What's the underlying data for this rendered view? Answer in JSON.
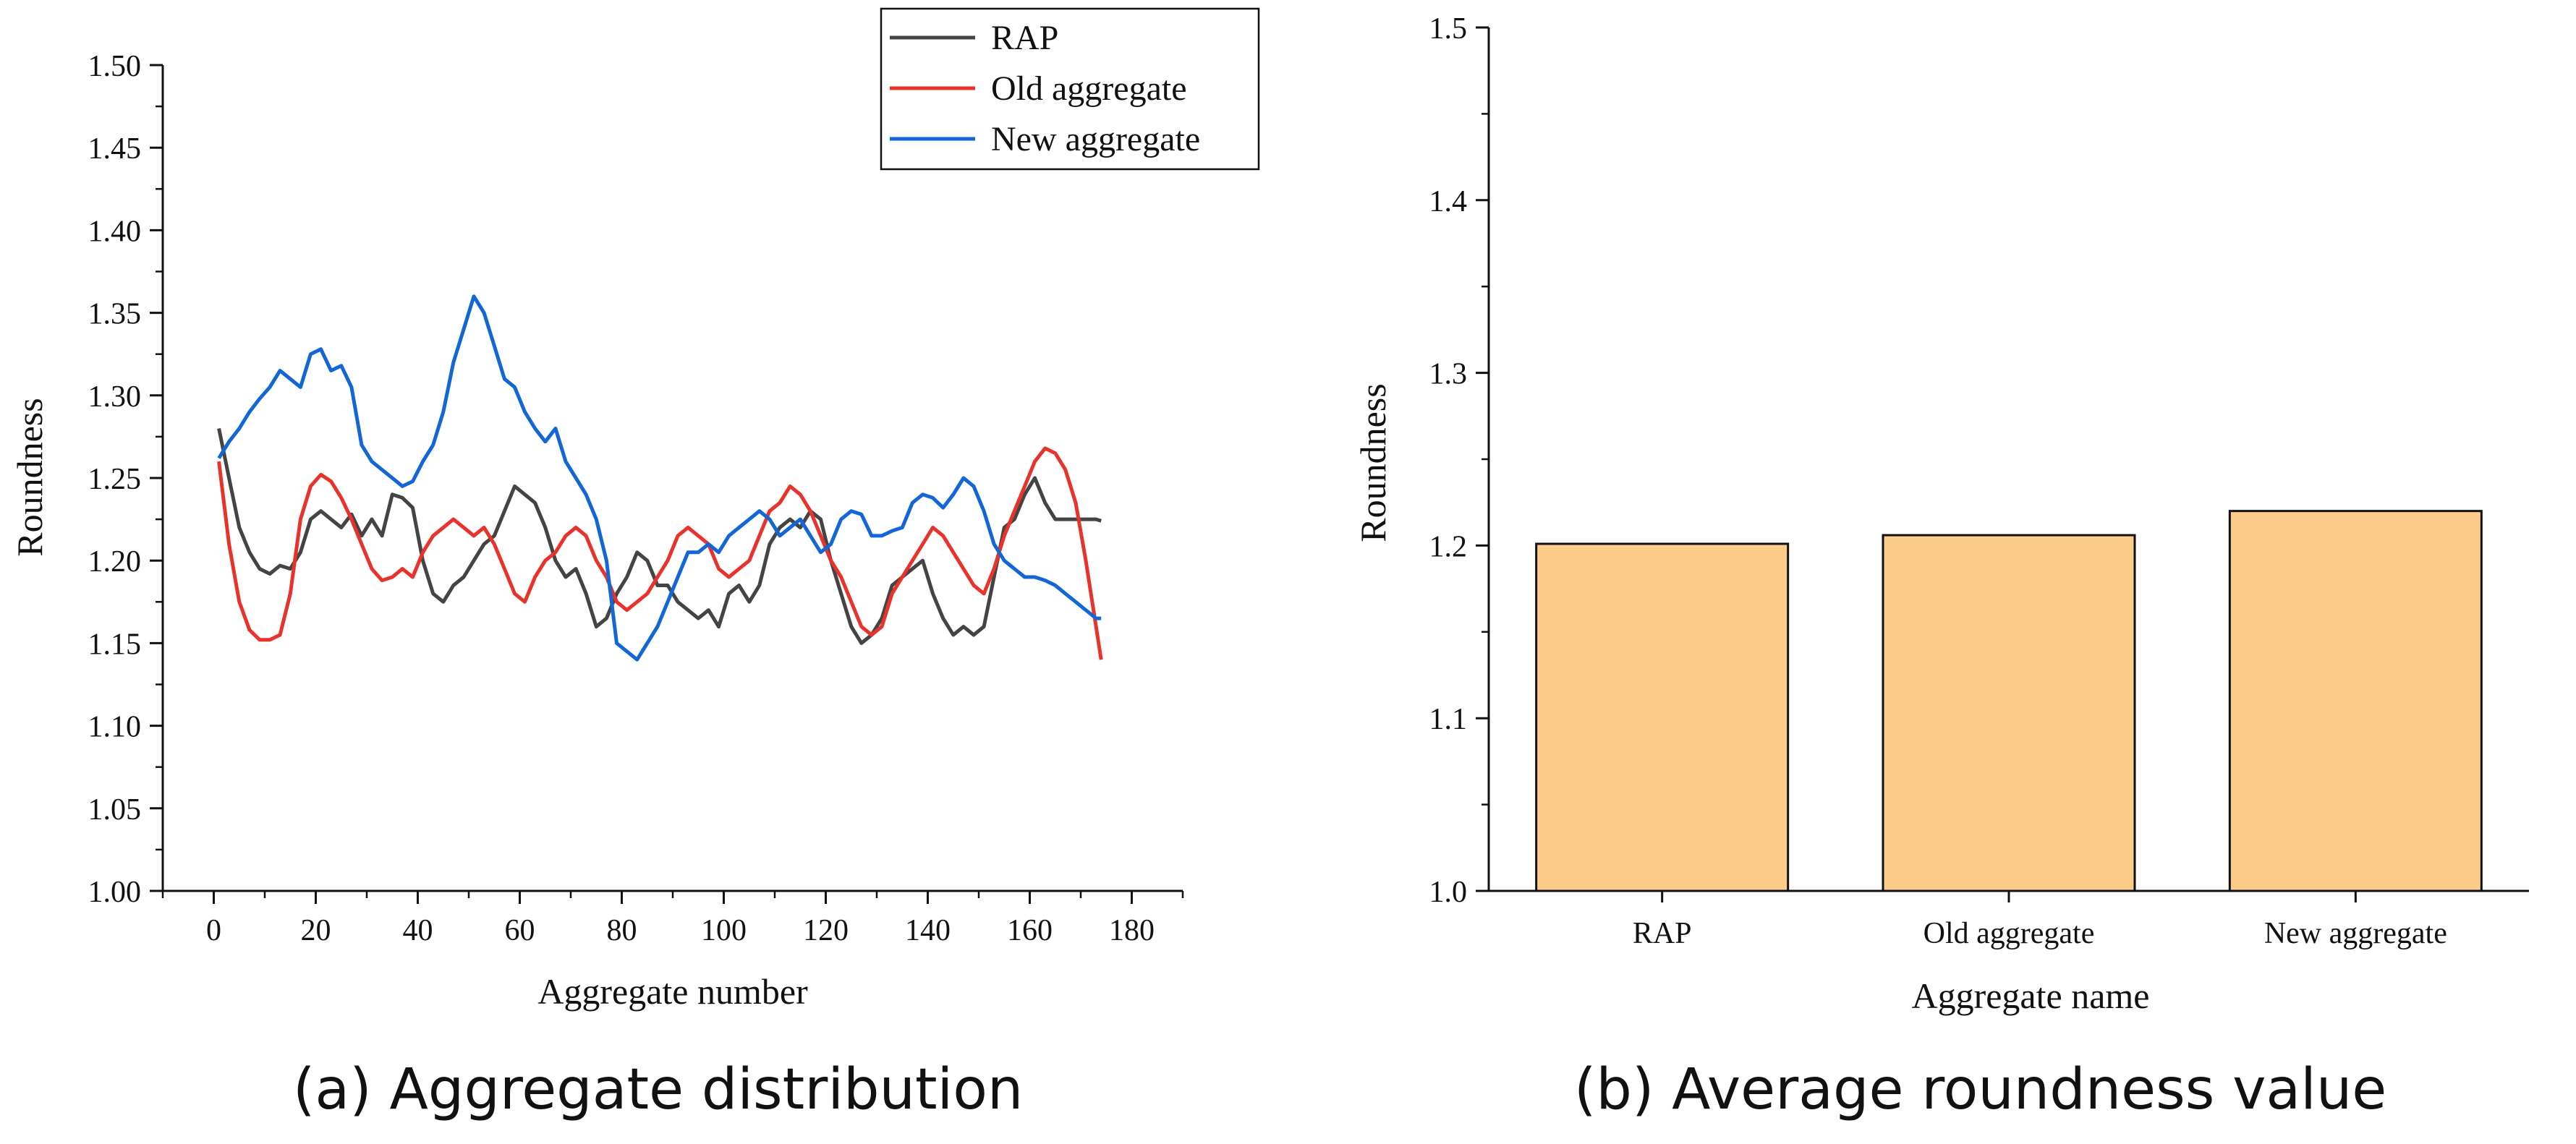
{
  "chart_data": [
    {
      "type": "line",
      "caption": "(a) Aggregate distribution",
      "xlabel": "Aggregate number",
      "ylabel": "Roundness",
      "xlim": [
        -10,
        190
      ],
      "ylim": [
        1.0,
        1.5
      ],
      "xticks": [
        "0",
        "20",
        "40",
        "60",
        "80",
        "100",
        "120",
        "140",
        "160",
        "180"
      ],
      "yticks": [
        "1.00",
        "1.05",
        "1.10",
        "1.15",
        "1.20",
        "1.25",
        "1.30",
        "1.35",
        "1.40",
        "1.45",
        "1.50"
      ],
      "legend_position": "top-right",
      "grid": false,
      "series": [
        {
          "name": "RAP",
          "color": "#444444",
          "x": [
            1,
            3,
            5,
            7,
            9,
            11,
            13,
            15,
            17,
            19,
            21,
            23,
            25,
            27,
            29,
            31,
            33,
            35,
            37,
            39,
            41,
            43,
            45,
            47,
            49,
            51,
            53,
            55,
            57,
            59,
            61,
            63,
            65,
            67,
            69,
            71,
            73,
            75,
            77,
            79,
            81,
            83,
            85,
            87,
            89,
            91,
            93,
            95,
            97,
            99,
            101,
            103,
            105,
            107,
            109,
            111,
            113,
            115,
            117,
            119,
            121,
            123,
            125,
            127,
            129,
            131,
            133,
            135,
            137,
            139,
            141,
            143,
            145,
            147,
            149,
            151,
            153,
            155,
            157,
            159,
            161,
            163,
            165,
            167,
            169,
            171,
            173,
            174
          ],
          "y": [
            1.28,
            1.25,
            1.22,
            1.205,
            1.195,
            1.192,
            1.197,
            1.195,
            1.205,
            1.225,
            1.23,
            1.225,
            1.22,
            1.228,
            1.215,
            1.225,
            1.215,
            1.24,
            1.238,
            1.232,
            1.2,
            1.18,
            1.175,
            1.185,
            1.19,
            1.2,
            1.21,
            1.215,
            1.23,
            1.245,
            1.24,
            1.235,
            1.22,
            1.2,
            1.19,
            1.195,
            1.18,
            1.16,
            1.165,
            1.18,
            1.19,
            1.205,
            1.2,
            1.185,
            1.185,
            1.175,
            1.17,
            1.165,
            1.17,
            1.16,
            1.18,
            1.185,
            1.175,
            1.185,
            1.21,
            1.22,
            1.225,
            1.22,
            1.23,
            1.225,
            1.2,
            1.18,
            1.16,
            1.15,
            1.155,
            1.165,
            1.185,
            1.19,
            1.195,
            1.2,
            1.18,
            1.165,
            1.155,
            1.16,
            1.155,
            1.16,
            1.19,
            1.22,
            1.225,
            1.24,
            1.25,
            1.235,
            1.225,
            1.225,
            1.225,
            1.225,
            1.225,
            1.224
          ]
        },
        {
          "name": "Old aggregate",
          "color": "#e8332c",
          "x": [
            1,
            3,
            5,
            7,
            9,
            11,
            13,
            15,
            17,
            19,
            21,
            23,
            25,
            27,
            29,
            31,
            33,
            35,
            37,
            39,
            41,
            43,
            45,
            47,
            49,
            51,
            53,
            55,
            57,
            59,
            61,
            63,
            65,
            67,
            69,
            71,
            73,
            75,
            77,
            79,
            81,
            83,
            85,
            87,
            89,
            91,
            93,
            95,
            97,
            99,
            101,
            103,
            105,
            107,
            109,
            111,
            113,
            115,
            117,
            119,
            121,
            123,
            125,
            127,
            129,
            131,
            133,
            135,
            137,
            139,
            141,
            143,
            145,
            147,
            149,
            151,
            153,
            155,
            157,
            159,
            161,
            163,
            165,
            167,
            169,
            171,
            173,
            174
          ],
          "y": [
            1.26,
            1.21,
            1.175,
            1.158,
            1.152,
            1.152,
            1.155,
            1.18,
            1.225,
            1.245,
            1.252,
            1.248,
            1.238,
            1.225,
            1.21,
            1.195,
            1.188,
            1.19,
            1.195,
            1.19,
            1.205,
            1.215,
            1.22,
            1.225,
            1.22,
            1.215,
            1.22,
            1.21,
            1.195,
            1.18,
            1.175,
            1.19,
            1.2,
            1.205,
            1.215,
            1.22,
            1.215,
            1.2,
            1.19,
            1.175,
            1.17,
            1.175,
            1.18,
            1.19,
            1.2,
            1.215,
            1.22,
            1.215,
            1.21,
            1.195,
            1.19,
            1.195,
            1.2,
            1.215,
            1.23,
            1.235,
            1.245,
            1.24,
            1.23,
            1.215,
            1.2,
            1.19,
            1.175,
            1.16,
            1.155,
            1.16,
            1.18,
            1.19,
            1.2,
            1.21,
            1.22,
            1.215,
            1.205,
            1.195,
            1.185,
            1.18,
            1.195,
            1.215,
            1.23,
            1.245,
            1.26,
            1.268,
            1.265,
            1.255,
            1.235,
            1.2,
            1.16,
            1.14
          ]
        },
        {
          "name": "New aggregate",
          "color": "#1266d6",
          "x": [
            1,
            3,
            5,
            7,
            9,
            11,
            13,
            15,
            17,
            19,
            21,
            23,
            25,
            27,
            29,
            31,
            33,
            35,
            37,
            39,
            41,
            43,
            45,
            47,
            49,
            51,
            53,
            55,
            57,
            59,
            61,
            63,
            65,
            67,
            69,
            71,
            73,
            75,
            77,
            79,
            81,
            83,
            85,
            87,
            89,
            91,
            93,
            95,
            97,
            99,
            101,
            103,
            105,
            107,
            109,
            111,
            113,
            115,
            117,
            119,
            121,
            123,
            125,
            127,
            129,
            131,
            133,
            135,
            137,
            139,
            141,
            143,
            145,
            147,
            149,
            151,
            153,
            155,
            157,
            159,
            161,
            163,
            165,
            167,
            169,
            171,
            173,
            174
          ],
          "y": [
            1.262,
            1.272,
            1.28,
            1.29,
            1.298,
            1.305,
            1.315,
            1.31,
            1.305,
            1.325,
            1.328,
            1.315,
            1.318,
            1.305,
            1.27,
            1.26,
            1.255,
            1.25,
            1.245,
            1.248,
            1.26,
            1.27,
            1.29,
            1.32,
            1.34,
            1.36,
            1.35,
            1.33,
            1.31,
            1.305,
            1.29,
            1.28,
            1.272,
            1.28,
            1.26,
            1.25,
            1.24,
            1.225,
            1.2,
            1.15,
            1.145,
            1.14,
            1.15,
            1.16,
            1.175,
            1.19,
            1.205,
            1.205,
            1.21,
            1.205,
            1.215,
            1.22,
            1.225,
            1.23,
            1.225,
            1.215,
            1.22,
            1.225,
            1.215,
            1.205,
            1.21,
            1.225,
            1.23,
            1.228,
            1.215,
            1.215,
            1.218,
            1.22,
            1.235,
            1.24,
            1.238,
            1.232,
            1.24,
            1.25,
            1.245,
            1.23,
            1.21,
            1.2,
            1.195,
            1.19,
            1.19,
            1.188,
            1.185,
            1.18,
            1.175,
            1.17,
            1.165,
            1.165
          ]
        }
      ]
    },
    {
      "type": "bar",
      "caption": "(b) Average roundness value",
      "xlabel": "Aggregate name",
      "ylabel": "Roundness",
      "ylim": [
        1.0,
        1.5
      ],
      "yticks": [
        "1.0",
        "1.1",
        "1.2",
        "1.3",
        "1.4",
        "1.5"
      ],
      "categories": [
        "RAP",
        "Old aggregate",
        "New aggregate"
      ],
      "values": [
        1.201,
        1.206,
        1.22
      ],
      "bar_color": "#fdcc8a",
      "grid": false
    }
  ]
}
